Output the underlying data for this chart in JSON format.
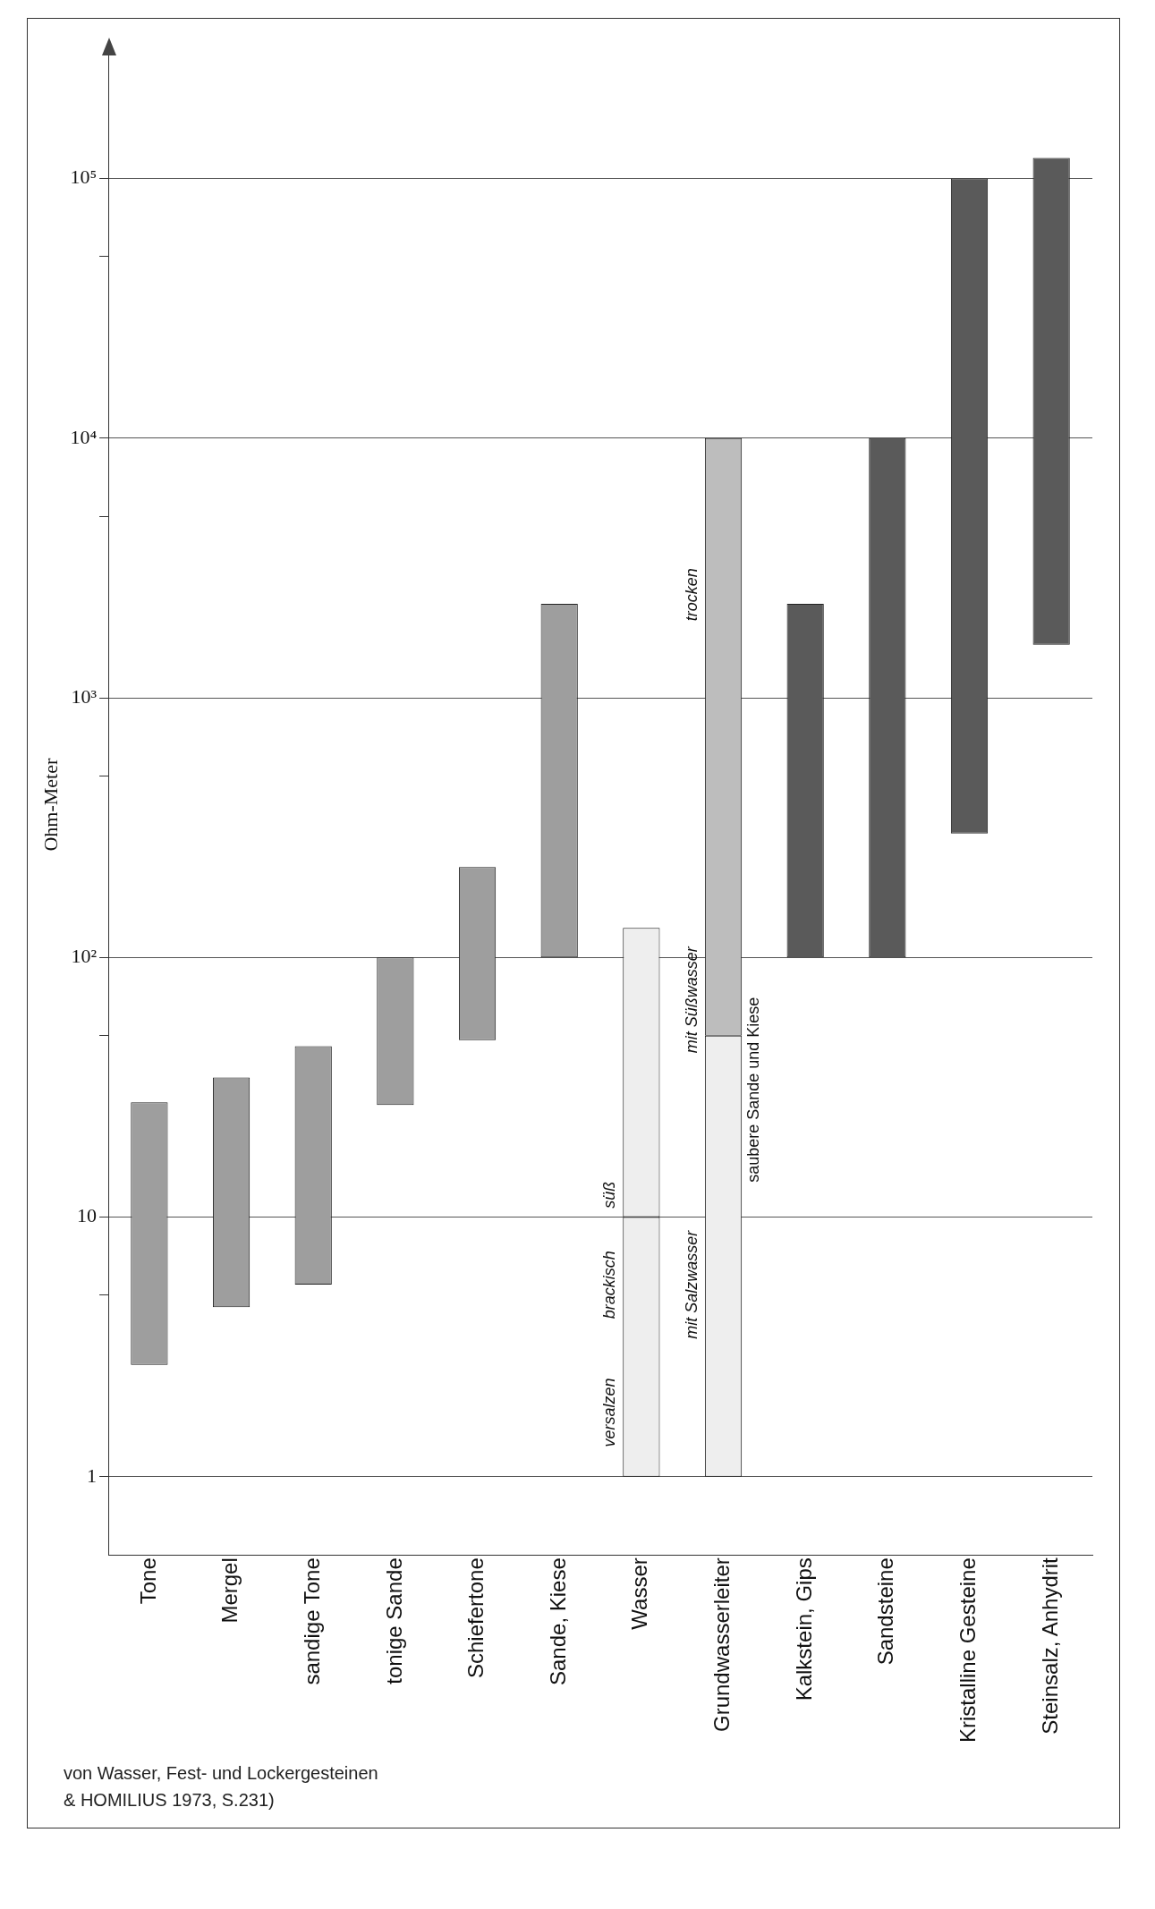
{
  "chart_data": {
    "type": "bar",
    "categories": [
      "Tone",
      "Mergel",
      "sandige Tone",
      "tonige Sande",
      "Schiefertone",
      "Sande, Kiese",
      "Wasser",
      "Grundwasserleiter",
      "Kalkstein, Gips",
      "Sandsteine",
      "Kristalline Gesteine",
      "Steinsalz, Anhydrit"
    ],
    "series": [
      {
        "colors": [
          "#9e9e9e",
          "#9e9e9e",
          "#9e9e9e",
          "#9e9e9e",
          "#9e9e9e",
          "#9e9e9e",
          "#eeeeee",
          "#eeeeee",
          "#5a5a5a",
          "#5a5a5a",
          "#5a5a5a",
          "#5a5a5a"
        ],
        "base": [
          2.7,
          4.5,
          5.5,
          27,
          48,
          100,
          1,
          1,
          100,
          100,
          300,
          1600
        ],
        "values": [
          25,
          30,
          40,
          73,
          175,
          2200,
          9,
          49,
          2200,
          9900,
          99700,
          118400
        ]
      },
      {
        "colors": [
          null,
          null,
          null,
          null,
          null,
          null,
          "#eeeeee",
          "#bdbdbd",
          null,
          null,
          null,
          null
        ],
        "base": [
          null,
          null,
          null,
          null,
          null,
          null,
          10,
          50,
          null,
          null,
          null,
          null
        ],
        "values": [
          null,
          null,
          null,
          null,
          null,
          null,
          120,
          9950,
          null,
          null,
          null,
          null
        ]
      }
    ],
    "log": true,
    "ylim": [
      0.5,
      300000
    ],
    "yticks": [
      1,
      {
        "value": 5,
        "label": null
      },
      10,
      {
        "value": 50,
        "label": null
      },
      {
        "value": 100,
        "label": "10²"
      },
      {
        "value": 500,
        "label": null
      },
      {
        "value": 1000,
        "label": "10³"
      },
      {
        "value": 5000,
        "label": null
      },
      {
        "value": 10000,
        "label": "10⁴"
      },
      {
        "value": 50000,
        "label": null
      },
      {
        "value": 100000,
        "label": "10⁵"
      }
    ],
    "ylabel": "Ohm-Meter",
    "grid": "y",
    "legend": false,
    "annotations": [
      "versalzen",
      "brackisch",
      "süß",
      "mit Salzwasser",
      "mit Süßwasser",
      "trocken",
      "saubere Sande und Kiese",
      "von Wasser, Fest- und Lockergesteinen",
      "& HOMILIUS 1973, S.231)"
    ]
  }
}
